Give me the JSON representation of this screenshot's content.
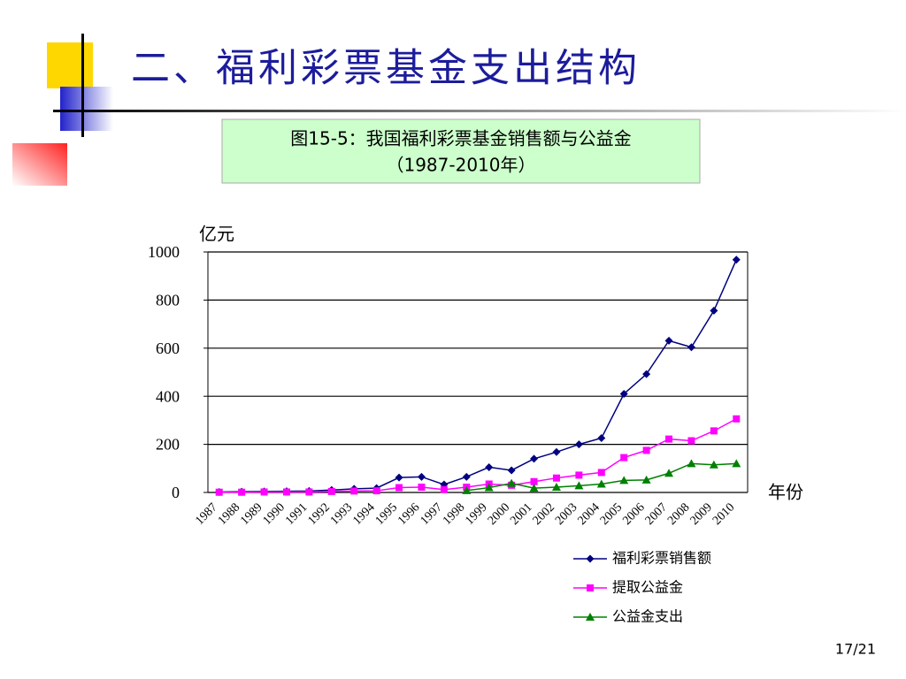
{
  "title": "二、福利彩票基金支出结构",
  "caption": [
    "图15-5：我国福利彩票基金销售额与公益金",
    "（1987-2010年）"
  ],
  "page_number": "17/21",
  "chart_data": {
    "type": "line",
    "y_label": "亿元",
    "x_label": "年份",
    "categories": [
      "1987",
      "1988",
      "1989",
      "1990",
      "1991",
      "1992",
      "1993",
      "1994",
      "1995",
      "1996",
      "1997",
      "1998",
      "1999",
      "2000",
      "2001",
      "2002",
      "2003",
      "2004",
      "2005",
      "2006",
      "2007",
      "2008",
      "2009",
      "2010"
    ],
    "series": [
      {
        "name": "福利彩票销售额",
        "color": "#000080",
        "marker": "diamond",
        "values": [
          2,
          3,
          4,
          5,
          6,
          10,
          15,
          18,
          62,
          65,
          33,
          65,
          105,
          92,
          140,
          168,
          200,
          226,
          410,
          492,
          631,
          604,
          756,
          968
        ]
      },
      {
        "name": "提取公益金",
        "color": "#ff00ff",
        "marker": "square",
        "values": [
          1,
          1,
          2,
          2,
          2,
          4,
          6,
          7,
          20,
          22,
          12,
          22,
          35,
          30,
          45,
          60,
          72,
          83,
          145,
          175,
          222,
          215,
          256,
          306
        ]
      },
      {
        "name": "公益金支出",
        "color": "#008000",
        "marker": "triangle",
        "values": [
          null,
          null,
          null,
          null,
          null,
          null,
          null,
          null,
          null,
          null,
          null,
          8,
          20,
          38,
          18,
          22,
          28,
          35,
          50,
          52,
          80,
          120,
          115,
          120
        ]
      }
    ],
    "ylim": [
      0,
      1000
    ],
    "yticks": [
      0,
      200,
      400,
      600,
      800,
      1000
    ],
    "grid": true
  }
}
